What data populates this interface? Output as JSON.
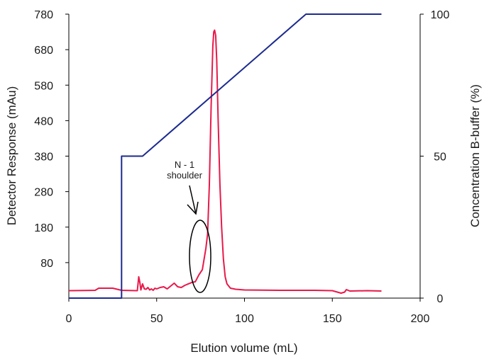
{
  "chart_data": {
    "type": "line",
    "title": "",
    "xlabel": "Elution volume (mL)",
    "ylabel_left": "Detector Response (mAu)",
    "ylabel_right": "Concentration B-buffer (%)",
    "xlim": [
      0,
      200
    ],
    "ylim_left": [
      -20,
      780
    ],
    "ylim_right": [
      0,
      100
    ],
    "x_ticks": [
      "0",
      "50",
      "100",
      "150",
      "200"
    ],
    "y_left_ticks": [
      "80",
      "180",
      "280",
      "380",
      "480",
      "580",
      "680",
      "780"
    ],
    "y_right_ticks": [
      "0",
      "50",
      "100"
    ],
    "grid": false,
    "legend": "none",
    "series": [
      {
        "axis": "left",
        "color": "#e8194a",
        "x": [
          0,
          15,
          17,
          25,
          30,
          39,
          39.8,
          40.4,
          41,
          42,
          43,
          44,
          45,
          46,
          47,
          48,
          49,
          50,
          52,
          54,
          56,
          58,
          60,
          62,
          64,
          66,
          68,
          70,
          72,
          74,
          76,
          78,
          79,
          80,
          81,
          82,
          82.5,
          83,
          83.6,
          84.2,
          85,
          86,
          87,
          88,
          89,
          90,
          92,
          95,
          100,
          120,
          140,
          150,
          155,
          157,
          158,
          160,
          170,
          178
        ],
        "values": [
          1,
          2,
          8,
          8,
          2,
          1,
          40,
          25,
          3,
          20,
          6,
          5,
          10,
          3,
          6,
          2,
          8,
          6,
          10,
          12,
          6,
          14,
          22,
          12,
          10,
          16,
          20,
          24,
          26,
          45,
          60,
          120,
          160,
          300,
          520,
          690,
          730,
          735,
          720,
          650,
          480,
          300,
          180,
          90,
          40,
          20,
          8,
          5,
          3,
          2,
          2,
          1,
          -6,
          -3,
          4,
          0,
          1,
          0
        ]
      },
      {
        "axis": "right",
        "color": "#1c2b8f",
        "x": [
          0,
          30,
          30,
          42,
          135,
          178
        ],
        "values": [
          0,
          0,
          50,
          50,
          100,
          100
        ]
      }
    ],
    "annotations": [
      {
        "text_line1": "N - 1",
        "text_line2": "shoulder"
      }
    ]
  }
}
